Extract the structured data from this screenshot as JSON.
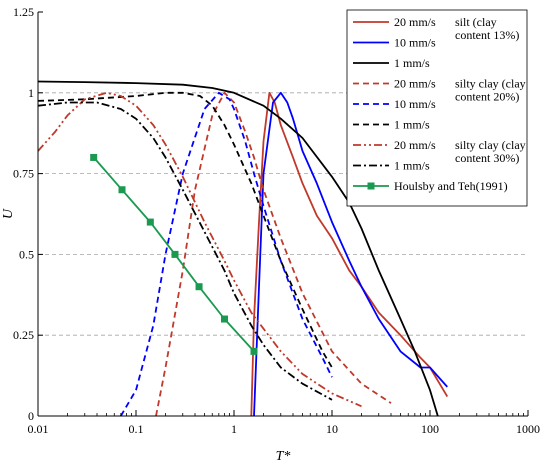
{
  "chart_data": {
    "type": "line",
    "xlabel": "T*",
    "ylabel": "U",
    "xscale": "log",
    "xlim": [
      0.01,
      1000
    ],
    "ylim": [
      0,
      1.25
    ],
    "x_ticks": [
      "0.01",
      "0.1",
      "1",
      "10",
      "100",
      "1000"
    ],
    "y_ticks": [
      "0",
      "0.25",
      "0.5",
      "0.75",
      "1",
      "1.25"
    ],
    "grid": "horizontal dashed",
    "legend_position": "top-right",
    "legend_groups": [
      {
        "label": "silt (clay content 13%)",
        "label_lines": [
          "silt (clay",
          "content 13%)"
        ],
        "color": "#7030a0"
      },
      {
        "label": "silty clay (clay content 20%)",
        "label_lines": [
          "silty clay (clay",
          "content 20%)"
        ],
        "color": "#00b050"
      },
      {
        "label": "silty clay (clay content 30%)",
        "label_lines": [
          "silty clay (clay",
          "content 30%)"
        ],
        "color": "#000000"
      }
    ],
    "series": [
      {
        "name": "20 mm/s",
        "color": "#c0392b",
        "dash": "solid",
        "x": [
          1.5,
          1.6,
          1.8,
          2.0,
          2.3,
          2.6,
          3,
          4,
          5,
          7,
          10,
          15,
          20,
          30,
          50,
          80,
          100,
          150
        ],
        "y": [
          0,
          0.3,
          0.6,
          0.85,
          1.0,
          0.97,
          0.9,
          0.8,
          0.72,
          0.62,
          0.55,
          0.45,
          0.4,
          0.32,
          0.25,
          0.18,
          0.15,
          0.06
        ]
      },
      {
        "name": "10 mm/s",
        "color": "#0000ff",
        "dash": "solid",
        "x": [
          1.6,
          1.8,
          2.0,
          2.5,
          3,
          3.5,
          4,
          5,
          7,
          10,
          15,
          20,
          30,
          50,
          80,
          100,
          150
        ],
        "y": [
          0,
          0.4,
          0.75,
          0.97,
          1.0,
          0.97,
          0.92,
          0.82,
          0.72,
          0.6,
          0.48,
          0.4,
          0.3,
          0.2,
          0.15,
          0.15,
          0.09
        ]
      },
      {
        "name": "1 mm/s",
        "color": "#000000",
        "dash": "solid",
        "x": [
          0.01,
          0.03,
          0.1,
          0.3,
          0.6,
          1,
          2,
          3,
          5,
          10,
          15,
          20,
          30,
          50,
          70,
          100,
          120
        ],
        "y": [
          1.035,
          1.033,
          1.03,
          1.025,
          1.015,
          1.0,
          0.96,
          0.92,
          0.86,
          0.74,
          0.66,
          0.58,
          0.45,
          0.3,
          0.2,
          0.08,
          0
        ]
      },
      {
        "name": "20 mm/s",
        "color": "#c0392b",
        "dash": "dashed",
        "x": [
          0.16,
          0.2,
          0.3,
          0.4,
          0.6,
          0.8,
          1.0,
          1.3,
          1.6,
          2,
          3,
          5,
          10,
          20,
          40
        ],
        "y": [
          0,
          0.15,
          0.45,
          0.7,
          0.93,
          1.0,
          0.97,
          0.88,
          0.8,
          0.7,
          0.55,
          0.38,
          0.2,
          0.1,
          0.04
        ]
      },
      {
        "name": "10 mm/s",
        "color": "#0000ff",
        "dash": "dashed",
        "x": [
          0.07,
          0.1,
          0.15,
          0.2,
          0.3,
          0.5,
          0.7,
          0.9,
          1.0,
          1.3,
          1.6,
          2,
          3,
          5,
          8,
          10
        ],
        "y": [
          0,
          0.08,
          0.28,
          0.5,
          0.75,
          0.95,
          1.0,
          0.98,
          0.95,
          0.85,
          0.75,
          0.65,
          0.48,
          0.3,
          0.18,
          0.12
        ]
      },
      {
        "name": "1 mm/s",
        "color": "#000000",
        "dash": "dashed",
        "x": [
          0.01,
          0.03,
          0.1,
          0.2,
          0.3,
          0.45,
          0.6,
          0.8,
          1,
          1.5,
          2,
          3,
          5,
          8,
          10
        ],
        "y": [
          0.975,
          0.98,
          0.99,
          1.0,
          1.0,
          0.99,
          0.96,
          0.9,
          0.84,
          0.72,
          0.62,
          0.48,
          0.33,
          0.2,
          0.15
        ]
      },
      {
        "name": "20 mm/s",
        "color": "#c0392b",
        "dash": "dashdotdot",
        "x": [
          0.01,
          0.015,
          0.02,
          0.03,
          0.05,
          0.07,
          0.1,
          0.15,
          0.2,
          0.3,
          0.5,
          0.8,
          1.0,
          1.5,
          2,
          3,
          5,
          10,
          20
        ],
        "y": [
          0.82,
          0.88,
          0.93,
          0.98,
          1.0,
          0.99,
          0.96,
          0.9,
          0.84,
          0.74,
          0.6,
          0.48,
          0.42,
          0.32,
          0.27,
          0.2,
          0.13,
          0.07,
          0.03
        ]
      },
      {
        "name": "1 mm/s",
        "color": "#000000",
        "dash": "dashdot",
        "x": [
          0.01,
          0.02,
          0.04,
          0.07,
          0.1,
          0.15,
          0.2,
          0.3,
          0.5,
          0.8,
          1.0,
          1.5,
          2,
          3,
          5,
          10
        ],
        "y": [
          0.96,
          0.97,
          0.97,
          0.95,
          0.92,
          0.86,
          0.8,
          0.7,
          0.57,
          0.45,
          0.38,
          0.28,
          0.22,
          0.15,
          0.1,
          0.05
        ]
      },
      {
        "name": "Houlsby and Teh(1991)",
        "color": "#1a9a50",
        "dash": "solid",
        "marker": "square",
        "x": [
          0.037,
          0.072,
          0.14,
          0.25,
          0.44,
          0.8,
          1.6
        ],
        "y": [
          0.8,
          0.7,
          0.6,
          0.5,
          0.4,
          0.3,
          0.2
        ]
      }
    ]
  }
}
